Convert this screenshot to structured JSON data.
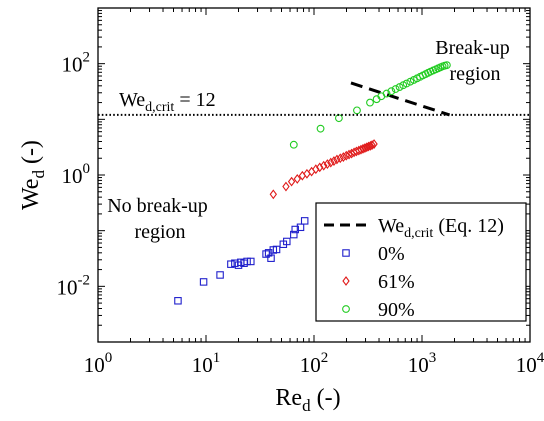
{
  "chart_data": {
    "type": "scatter",
    "xlabel": "Re",
    "xlabel_sub": "d",
    "xlabel_unit": "(-)",
    "ylabel": "We",
    "ylabel_sub": "d",
    "ylabel_unit": "(-)",
    "xscale": "log",
    "yscale": "log",
    "xlim": [
      1,
      10000
    ],
    "ylim": [
      0.001,
      1000
    ],
    "grid": false,
    "x_ticks": [
      {
        "value": 1,
        "base": "10",
        "exp": "0"
      },
      {
        "value": 10,
        "base": "10",
        "exp": "1"
      },
      {
        "value": 100,
        "base": "10",
        "exp": "2"
      },
      {
        "value": 1000,
        "base": "10",
        "exp": "3"
      },
      {
        "value": 10000,
        "base": "10",
        "exp": "4"
      }
    ],
    "y_ticks": [
      {
        "value": 0.01,
        "base": "10",
        "exp": "-2"
      },
      {
        "value": 1,
        "base": "10",
        "exp": "0"
      },
      {
        "value": 100,
        "base": "10",
        "exp": "2"
      }
    ],
    "critical_line": {
      "value": 12,
      "label_main": "We",
      "label_sub": "d,crit",
      "label_rest": " = 12",
      "style": "dotted"
    },
    "annotations": [
      {
        "lines": [
          "Break-up",
          "region"
        ],
        "anchor": "top-right"
      },
      {
        "lines": [
          "No break-up",
          "region"
        ],
        "anchor": "middle-left"
      }
    ],
    "legend": {
      "position": "bottom-right",
      "entries": [
        {
          "label_main": "We",
          "label_sub": "d,crit",
          "label_rest": " (Eq. 12)",
          "marker": "dash",
          "color": "#000000"
        },
        {
          "label_main": "0%",
          "marker": "square",
          "color": "#1f1fcc"
        },
        {
          "label_main": "61%",
          "marker": "diamond",
          "color": "#e01a1a"
        },
        {
          "label_main": "90%",
          "marker": "circle",
          "color": "#22cc22"
        }
      ]
    },
    "series": [
      {
        "name": "We_d,crit (Eq. 12)",
        "kind": "line",
        "style": "dashed",
        "color": "#000000",
        "x": [
          220,
          1800
        ],
        "y": [
          45,
          12
        ]
      },
      {
        "name": "0%",
        "kind": "marker",
        "marker": "square",
        "color": "#1f1fcc",
        "x": [
          5.5,
          9.5,
          13.5,
          17,
          18.5,
          20,
          21,
          22.5,
          24,
          26,
          36,
          38,
          40,
          42,
          45,
          52,
          56,
          65,
          67,
          75,
          82
        ],
        "y": [
          0.0055,
          0.012,
          0.016,
          0.025,
          0.026,
          0.024,
          0.027,
          0.026,
          0.028,
          0.028,
          0.038,
          0.04,
          0.032,
          0.045,
          0.046,
          0.057,
          0.064,
          0.085,
          0.105,
          0.115,
          0.15
        ]
      },
      {
        "name": "61%",
        "kind": "marker",
        "marker": "diamond",
        "color": "#e01a1a",
        "x": [
          42,
          55,
          62,
          70,
          78,
          86,
          95,
          104,
          113,
          123,
          133,
          143,
          153,
          163,
          175,
          187,
          199,
          211,
          223,
          235,
          247,
          260,
          272,
          284,
          296,
          308,
          320,
          333,
          345,
          360
        ],
        "y": [
          0.45,
          0.62,
          0.76,
          0.85,
          0.97,
          1.05,
          1.15,
          1.27,
          1.37,
          1.47,
          1.57,
          1.67,
          1.78,
          1.9,
          2.0,
          2.1,
          2.22,
          2.33,
          2.43,
          2.55,
          2.65,
          2.75,
          2.85,
          2.95,
          3.05,
          3.15,
          3.25,
          3.35,
          3.45,
          3.6
        ]
      },
      {
        "name": "90%",
        "kind": "marker",
        "marker": "circle",
        "color": "#22cc22",
        "x": [
          65,
          115,
          170,
          250,
          330,
          380,
          420,
          470,
          520,
          570,
          620,
          670,
          720,
          780,
          840,
          900,
          960,
          1020,
          1080,
          1140,
          1200,
          1270,
          1340,
          1410,
          1480,
          1550,
          1620,
          1700
        ],
        "y": [
          3.5,
          6.8,
          10.5,
          14.5,
          20,
          23,
          26,
          29,
          32,
          35,
          38,
          41,
          44,
          47.5,
          51,
          54.5,
          58,
          61.5,
          65,
          68.5,
          72,
          75.5,
          79,
          82.5,
          86,
          89.5,
          92,
          94
        ]
      }
    ]
  }
}
